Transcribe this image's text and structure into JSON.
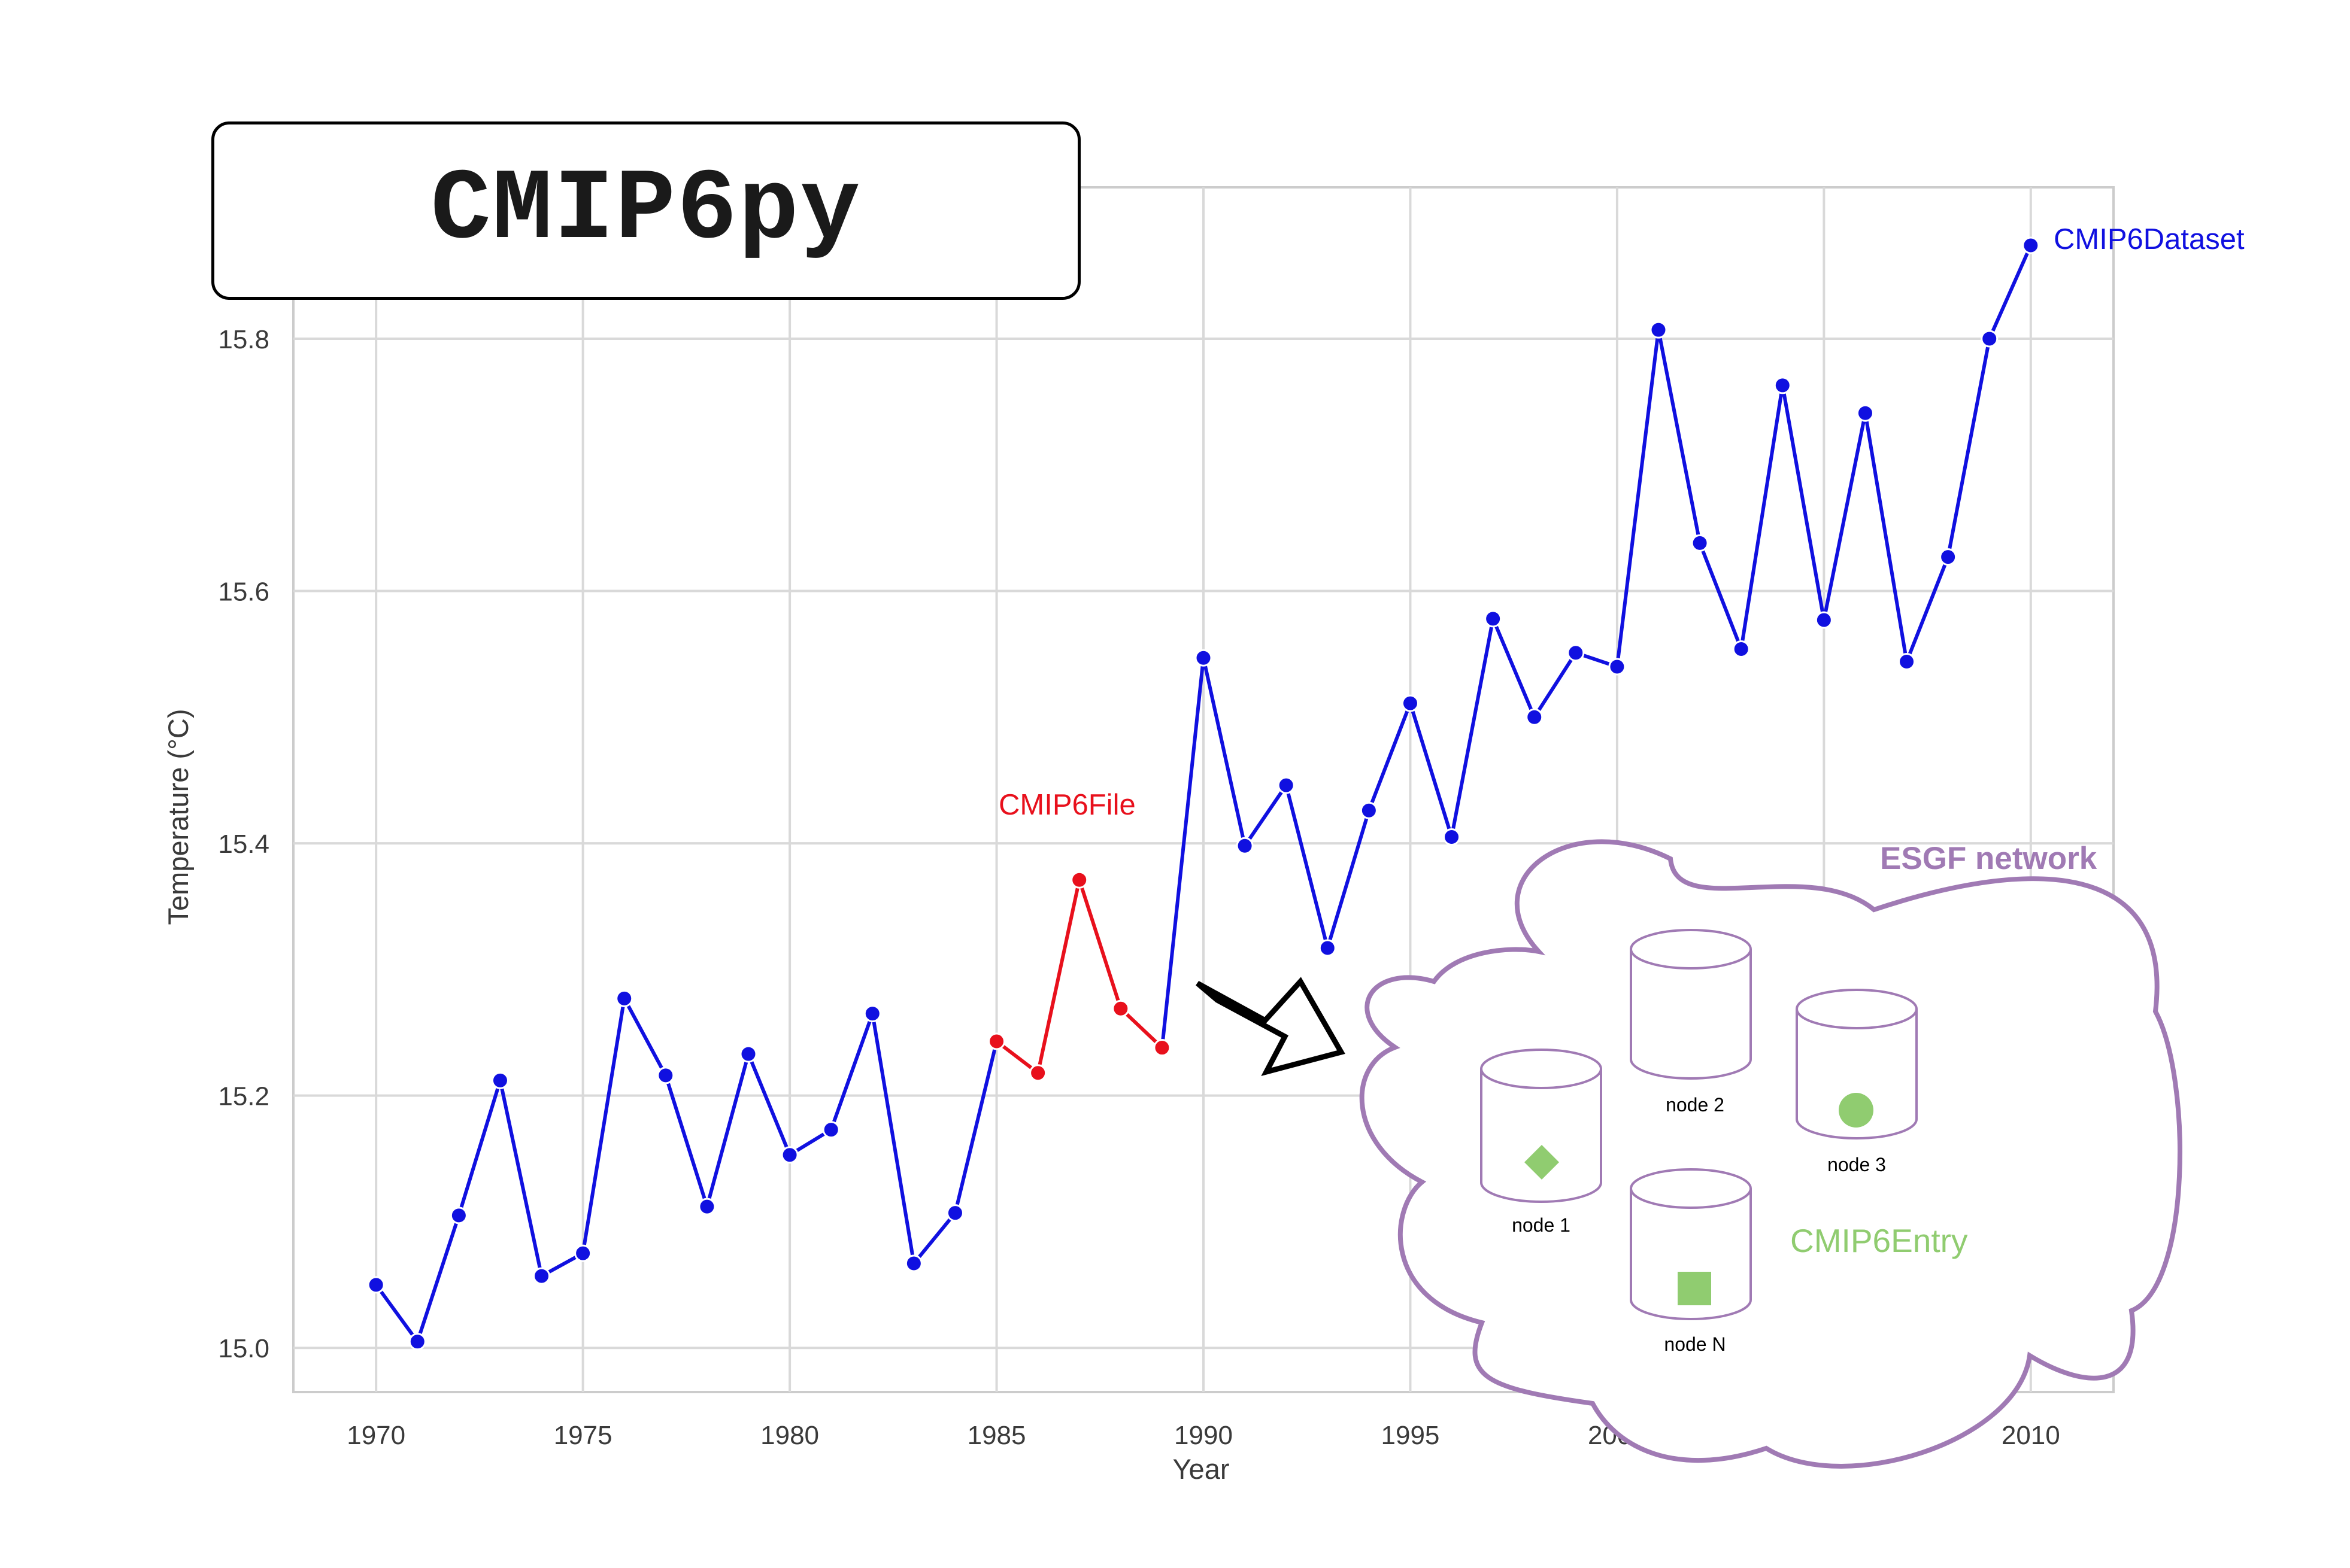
{
  "title": "CMIP6py",
  "chart_data": {
    "type": "line",
    "xlabel": "Year",
    "ylabel": "Temperature (°C)",
    "xlim": [
      1968,
      2012
    ],
    "ylim": [
      14.965,
      15.92
    ],
    "xticks": [
      1970,
      1975,
      1980,
      1985,
      1990,
      1995,
      2000,
      2005,
      2010
    ],
    "yticks": [
      15.0,
      15.2,
      15.4,
      15.6,
      15.8
    ],
    "ytick_labels": [
      "15.0",
      "15.2",
      "15.4",
      "15.6",
      "15.8"
    ],
    "grid": true,
    "colors": {
      "dataset": "#1010e0",
      "file": "#e8101c"
    },
    "x": [
      1970,
      1971,
      1972,
      1973,
      1974,
      1975,
      1976,
      1977,
      1978,
      1979,
      1980,
      1981,
      1982,
      1983,
      1984,
      1985,
      1986,
      1987,
      1988,
      1989,
      1990,
      1991,
      1992,
      1993,
      1994,
      1995,
      1996,
      1997,
      1998,
      1999,
      2000,
      2001,
      2002,
      2003,
      2004,
      2005,
      2006,
      2007,
      2008,
      2009,
      2010
    ],
    "y": [
      15.05,
      15.005,
      15.105,
      15.212,
      15.057,
      15.075,
      15.277,
      15.216,
      15.112,
      15.233,
      15.153,
      15.173,
      15.265,
      15.067,
      15.107,
      15.243,
      15.218,
      15.371,
      15.269,
      15.238,
      15.547,
      15.398,
      15.446,
      15.317,
      15.426,
      15.511,
      15.405,
      15.578,
      15.5,
      15.551,
      15.54,
      15.807,
      15.638,
      15.554,
      15.763,
      15.577,
      15.741,
      15.544,
      15.627,
      15.8,
      15.874
    ],
    "highlight_range": [
      1985,
      1990
    ],
    "annotations": {
      "dataset": "CMIP6Dataset",
      "file": "CMIP6File"
    }
  },
  "network": {
    "title": "ESGF network",
    "entry_label": "CMIP6Entry",
    "outline_color": "#a07ab4",
    "entry_color": "#90cc70",
    "nodes": [
      {
        "label": "node 1",
        "marker": "diamond"
      },
      {
        "label": "node 2",
        "marker": "none"
      },
      {
        "label": "node 3",
        "marker": "circle"
      },
      {
        "label": "node N",
        "marker": "square"
      }
    ]
  }
}
